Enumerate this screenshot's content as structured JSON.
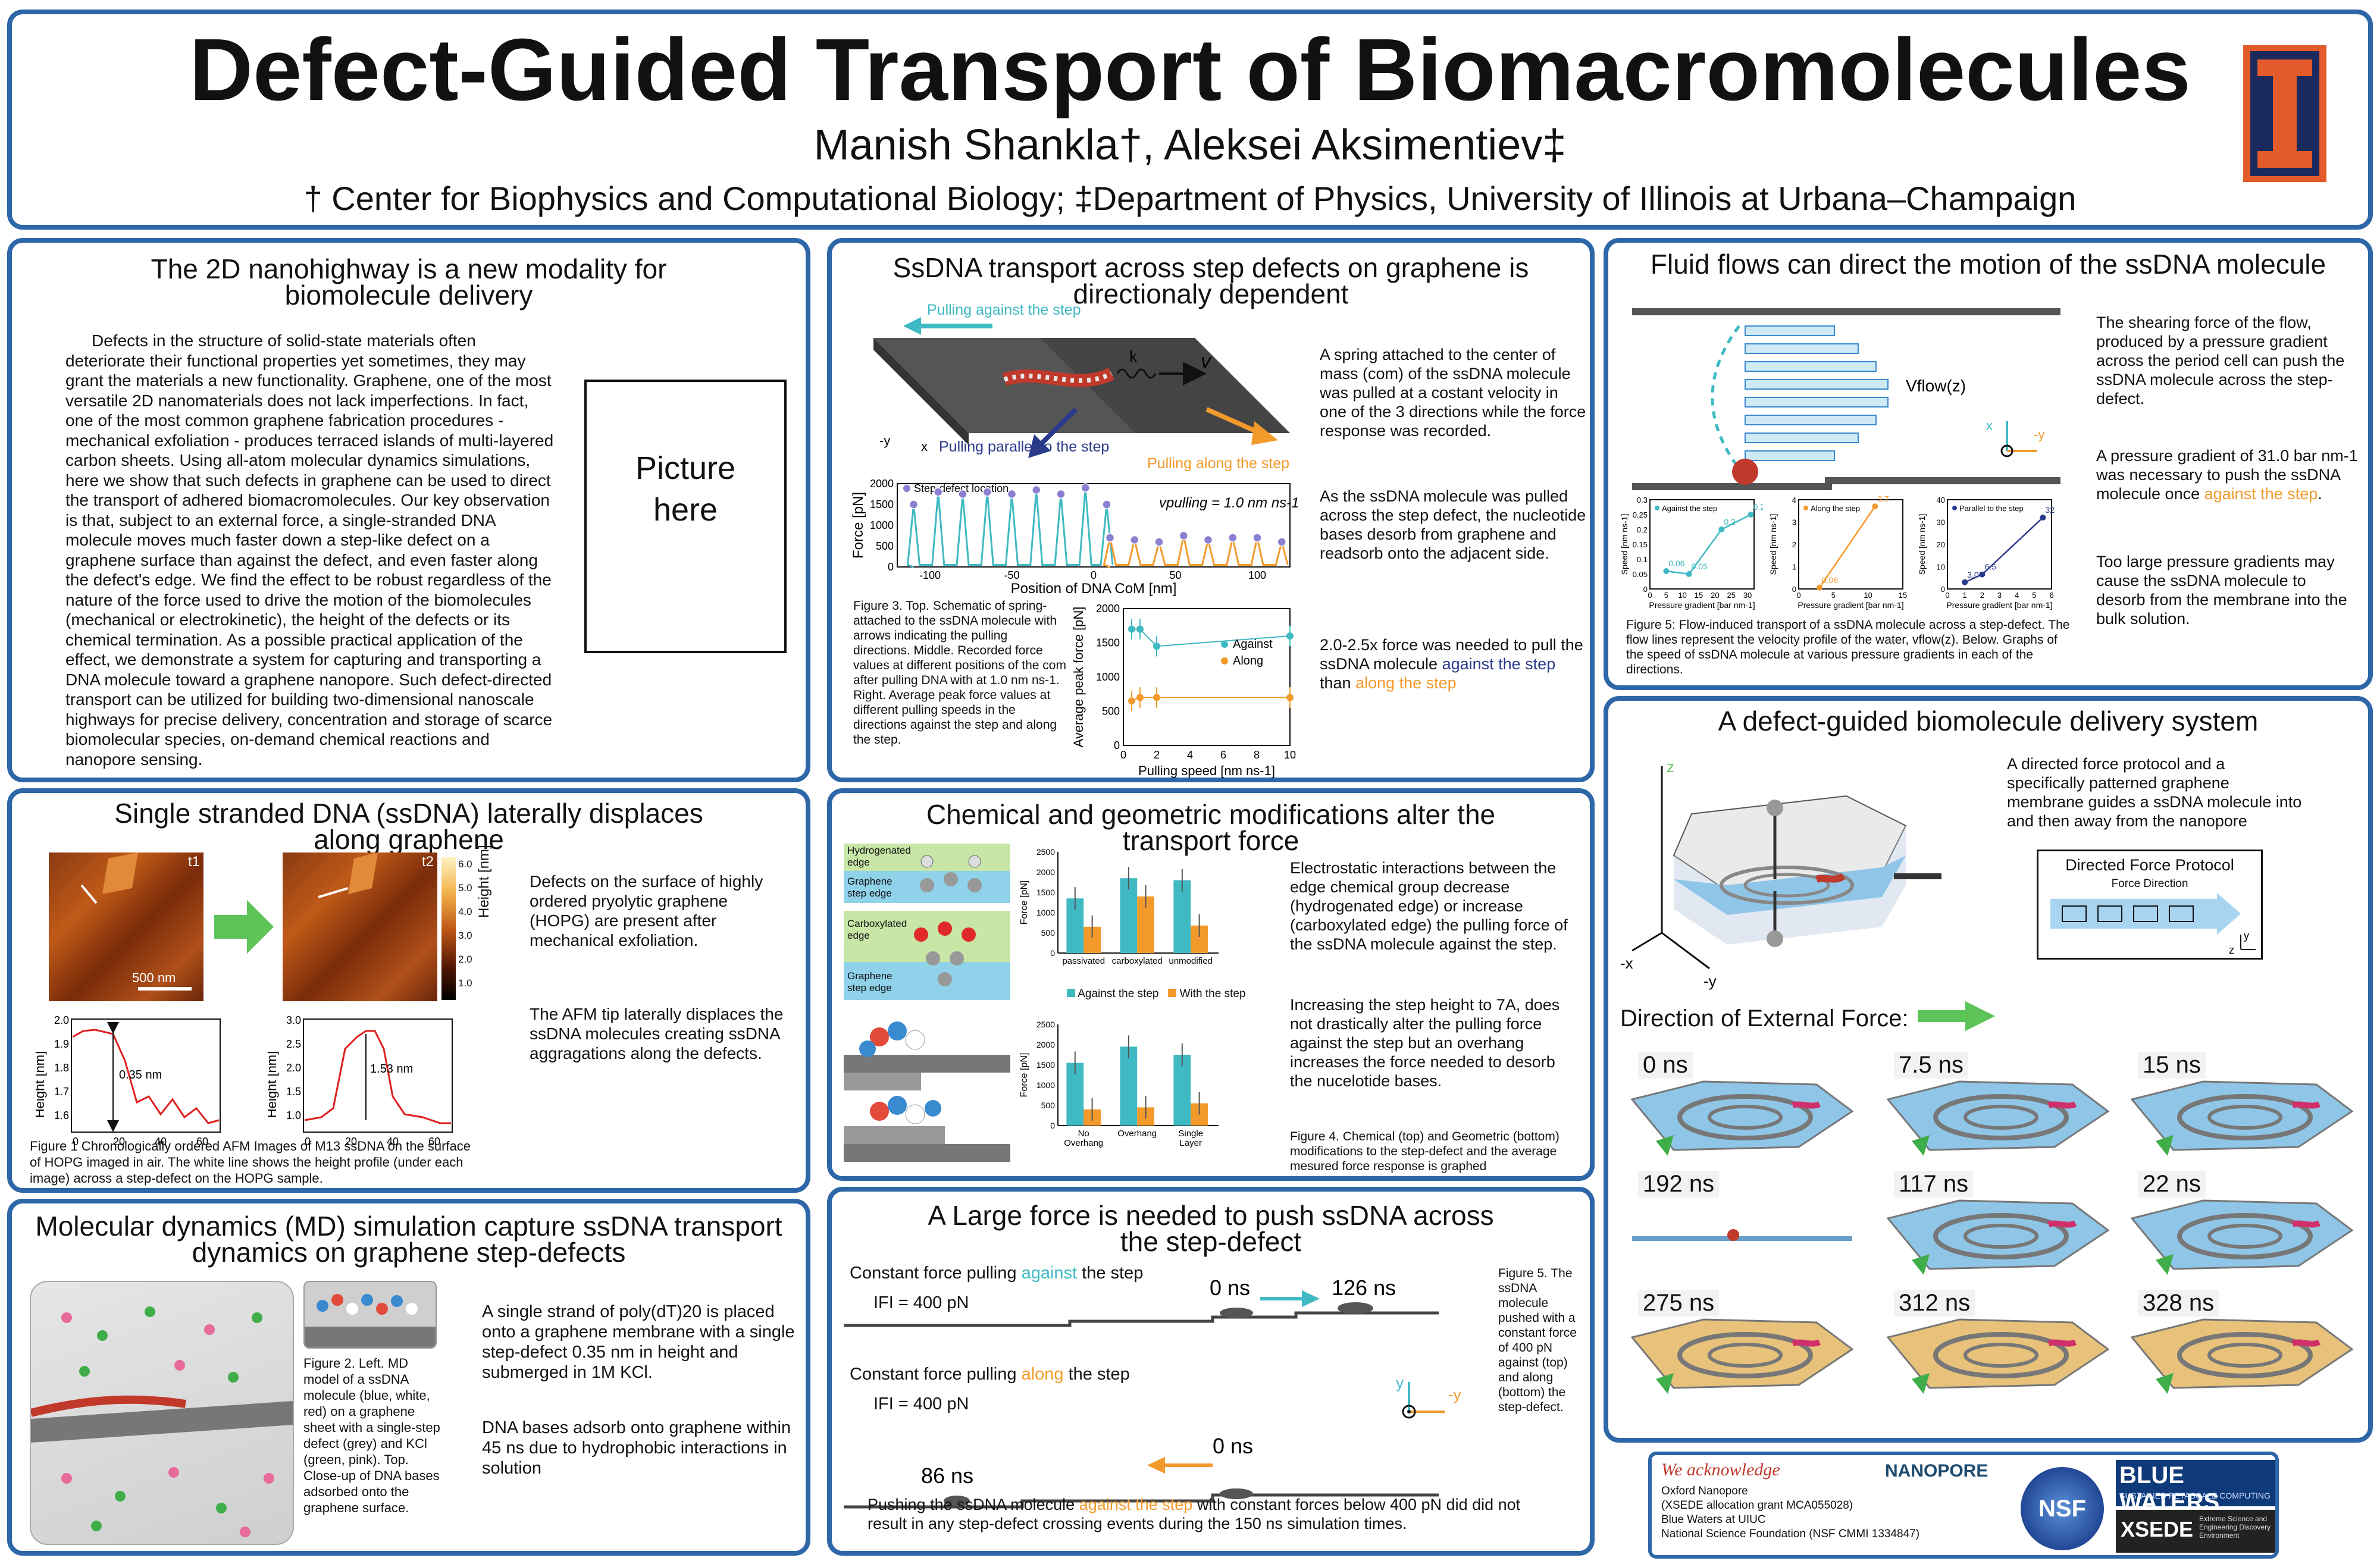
{
  "header": {
    "title": "Defect-Guided Transport of Biomacromolecules",
    "authors": "Manish Shankla†, Aleksei Aksimentiev‡",
    "affiliation": "† Center for Biophysics and Computational Biology; ‡Department of Physics, University of Illinois at Urbana–Champaign"
  },
  "p1": {
    "title": "The 2D nanohighway is a new modality for biomolecule delivery",
    "body": "Defects in the structure of solid-state materials often deteriorate their functional properties yet sometimes, they may grant the materials a new functionality. Graphene, one of the most versatile 2D nanomaterials does not lack imperfections. In fact, one of the most common graphene fabrication procedures - mechanical exfoliation - produces terraced islands of multi-layered carbon sheets. Using all-atom molecular dynamics simulations, here we show that such defects in graphene can be used to direct the transport of adhered biomacromolecules. Our key observation is that, subject to an external force, a single-stranded DNA molecule moves much faster down a step-like defect on a graphene surface than against the defect, and even faster along the defect's edge. We find the effect to be robust regardless of the nature of the force used to drive the motion of the biomolecules (mechanical or electrokinetic), the height of the defects or its chemical termination. As a possible practical application of the effect, we demonstrate a system for capturing and transporting a DNA molecule toward a graphene nanopore. Such defect-directed transport can be utilized for building two-dimensional nanoscale highways for precise delivery, concentration and storage of scarce biomolecular species, on-demand chemical reactions and nanopore sensing.",
    "picture_line1": "Picture",
    "picture_line2": "here"
  },
  "p2": {
    "title": "Single stranded DNA (ssDNA) laterally displaces along graphene",
    "t1": "t1",
    "t2": "t2",
    "scalebar": "500 nm",
    "colorbar_label": "Height [nm]",
    "colorbar_ticks": [
      "6.0",
      "5.0",
      "4.0",
      "3.0",
      "2.0",
      "1.0",
      "0.0"
    ],
    "text1": "Defects on the surface of highly ordered pryolytic graphene (HOPG) are present after mechanical exfoliation.",
    "text2": "The AFM tip laterally displaces the ssDNA molecules creating ssDNA aggragations along the defects.",
    "plot1_ylabel": "Height [nm]",
    "plot1_xlabel": "[nm]",
    "plot1_annot": "0.35 nm",
    "plot1_yticks": [
      "2.0",
      "1.9",
      "1.8",
      "1.7",
      "1.6"
    ],
    "plot1_xticks": [
      "0",
      "20",
      "40",
      "60"
    ],
    "plot2_ylabel": "Height [nm]",
    "plot2_xlabel": "[nm]",
    "plot2_annot": "1.53 nm",
    "plot2_yticks": [
      "3.0",
      "2.5",
      "2.0",
      "1.5",
      "1.0"
    ],
    "plot2_xticks": [
      "0",
      "20",
      "40",
      "60"
    ],
    "caption": "Figure 1 Chronologically ordered AFM Images of M13 ssDNA on the surface of HOPG imaged in air. The white line shows the height profile (under each image) across a step-defect on the HOPG sample."
  },
  "p3": {
    "title": "Molecular dynamics (MD) simulation capture ssDNA transport dynamics on graphene step-defects",
    "caption": "Figure 2. Left. MD model of a ssDNA molecule (blue, white, red) on a graphene sheet with a single-step defect (grey) and KCl (green, pink). Top. Close-up of DNA bases adsorbed onto the graphene surface.",
    "text1": "A single strand of poly(dT)20 is placed onto a graphene membrane with a single step-defect 0.35 nm in height and submerged in 1M KCl.",
    "text2": "DNA bases adsorb onto graphene within 45 ns due to hydrophobic interactions in solution"
  },
  "p4": {
    "title": "SsDNA transport across step defects on graphene is directionaly dependent",
    "label_against": "Pulling against the step",
    "label_parallel": "Pulling parallel to the step",
    "label_along": "Pulling along the step",
    "label_k": "k",
    "label_v": "v",
    "axis_y": "-y",
    "axis_x": "x",
    "text1": "A spring attached to the center of mass (com) of the ssDNA molecule was pulled at a costant velocity in one of the 3 directions while the force response was recorded.",
    "text2": "As the ssDNA molecule was pulled across the step defect, the nucleotide bases desorb from graphene and readsorb onto the adjacent side.",
    "text3_pre": "2.0-2.5x force was needed to pull the ssDNA molecule ",
    "text3_against": "against the step",
    "text3_mid": " than ",
    "text3_along": "along the step",
    "caption": "Figure 3. Top. Schematic of spring-attached to the ssDNA molecule with arrows indicating the pulling directions. Middle. Recorded force values at different positions of the com after pulling DNA with at 1.0 nm ns-1. Right. Average peak force values at different pulling speeds in the directions against the step and along the step."
  },
  "p5": {
    "title": "Chemical and geometric modifications alter the transport force",
    "label_hydro": "Hydrogenated edge",
    "label_graph1": "Graphene step edge",
    "label_carboxy": "Carboxylated edge",
    "label_graph2": "Graphene step edge",
    "legend_against": "Against the step",
    "legend_with": "With the step",
    "text1": "Electrostatic interactions between the edge chemical group decrease (hydrogenated edge) or increase (carboxylated edge) the pulling force of the ssDNA molecule against the step.",
    "text2": "Increasing the step height to 7A, does not drastically alter the pulling force against the step but an overhang increases the force needed to desorb the nucelotide bases.",
    "caption": "Figure 4. Chemical (top) and Geometric (bottom) modifications to the step-defect and the average mesured force response is graphed"
  },
  "p6": {
    "title": "A Large force is needed to push ssDNA across the step-defect",
    "row1_pre": "Constant force pulling ",
    "row1_word": "against",
    "row1_post": " the step",
    "row1_force": "IFI = 400 pN",
    "row1_t0": "0 ns",
    "row1_t1": "126 ns",
    "row2_pre": "Constant force pulling ",
    "row2_word": "along",
    "row2_post": " the step",
    "row2_force": "IFI = 400 pN",
    "row2_t0": "0 ns",
    "row2_t1": "86 ns",
    "axis_y": "y",
    "axis_ny": "-y",
    "caption": "Figure 5. The ssDNA molecule pushed with a constant force of 400 pN against (top) and along (bottom) the step-defect.",
    "bottom_pre": "Pushing the ssDNA molecule ",
    "bottom_hl": "against the step",
    "bottom_post": " with constant forces below 400 pN did did not result in any step-defect crossing events during the 150 ns simulation times."
  },
  "p7": {
    "title": "Fluid flows can direct the motion of the ssDNA molecule",
    "vflow": "Vflow(z)",
    "axis_x": "x",
    "axis_ny": "-y",
    "text1": "The shearing force of the flow, produced by a pressure gradient across the period cell can push the ssDNA molecule across the step-defect.",
    "text2_pre": "A pressure gradient of 31.0 bar nm-1 was necessary to push the ssDNA molecule once ",
    "text2_hl": "against the step",
    "text2_post": ".",
    "text3": "Too large pressure gradients may cause the ssDNA molecule to desorb from the membrane into the bulk solution.",
    "caption": "Figure 5: Flow-induced transport of a ssDNA molecule across a step-defect. The flow lines represent the velocity profile of the water, vflow(z). Below. Graphs of the speed of ssDNA molecule at various pressure gradients in each of the directions."
  },
  "p8": {
    "title": "A defect-guided biomolecule delivery system",
    "text1": "A directed force protocol and a specifically patterned graphene membrane guides a ssDNA molecule into and then away from the nanopore",
    "protocol_title": "Directed Force Protocol",
    "protocol_sub": "Force Direction",
    "axis_z": "z",
    "axis_nx": "-x",
    "axis_ny": "-y",
    "axis_y": "y",
    "direction_label": "Direction of External Force:",
    "times": [
      "0 ns",
      "7.5 ns",
      "15 ns",
      "192 ns",
      "117 ns",
      "22 ns",
      "275 ns",
      "312 ns",
      "328 ns"
    ]
  },
  "ack": {
    "title": "We acknowledge",
    "lines": [
      "Oxford Nanopore",
      "(XSEDE allocation grant MCA055028)",
      "Blue Waters at UIUC",
      "National Science Foundation (NSF CMMI 1334847)"
    ],
    "nanopore": "NANOPORE",
    "nsf": "NSF",
    "bluewaters": "BLUE WATERS",
    "bluewaters_sub": "SUSTAINED PETASCALE COMPUTING",
    "xsede": "XSEDE",
    "xsede_sub": "Extreme Science and Engineering Discovery Environment"
  },
  "chart_data": [
    {
      "type": "line",
      "id": "force-vs-position",
      "xlabel": "Position of DNA CoM [nm]",
      "ylabel": "Force [pN]",
      "legend": "Step-defect location",
      "annotation": "vpulling = 1.0 nm ns-1",
      "xlim": [
        -120,
        120
      ],
      "ylim": [
        0,
        2000
      ],
      "xticks": [
        -100,
        -50,
        0,
        50,
        100
      ],
      "yticks": [
        0,
        500,
        1000,
        1500,
        2000
      ],
      "series": [
        {
          "values": [
            [
              -110,
              1500
            ],
            [
              -95,
              1800
            ],
            [
              -80,
              1750
            ],
            [
              -65,
              1800
            ],
            [
              -50,
              1750
            ],
            [
              -35,
              1850
            ],
            [
              -20,
              1750
            ],
            [
              -5,
              1900
            ],
            [
              8,
              1500
            ]
          ]
        },
        {
          "values": [
            [
              10,
              700
            ],
            [
              25,
              650
            ],
            [
              40,
              600
            ],
            [
              55,
              750
            ],
            [
              70,
              650
            ],
            [
              85,
              700
            ],
            [
              100,
              700
            ],
            [
              115,
              600
            ]
          ]
        }
      ]
    },
    {
      "type": "scatter",
      "id": "peak-force-vs-speed",
      "xlabel": "Pulling speed [nm ns-1]",
      "ylabel": "Average peak force [pN]",
      "xlim": [
        0,
        10
      ],
      "ylim": [
        0,
        2000
      ],
      "xticks": [
        0,
        2,
        4,
        6,
        8,
        10
      ],
      "yticks": [
        0,
        500,
        1000,
        1500,
        2000
      ],
      "series": [
        {
          "name": "Against",
          "values": [
            [
              0.5,
              1700
            ],
            [
              1,
              1700
            ],
            [
              2,
              1450
            ],
            [
              10,
              1600
            ]
          ]
        },
        {
          "name": "Along",
          "values": [
            [
              0.5,
              650
            ],
            [
              1,
              700
            ],
            [
              2,
              700
            ],
            [
              10,
              700
            ]
          ]
        }
      ]
    },
    {
      "type": "bar",
      "id": "chemical-mods",
      "ylabel": "Force [pN]",
      "categories": [
        "passivated",
        "carboxylated",
        "unmodified"
      ],
      "ylim": [
        0,
        2500
      ],
      "yticks": [
        0,
        500,
        1000,
        1500,
        2000,
        2500
      ],
      "series": [
        {
          "name": "Against the step",
          "values": [
            1350,
            1850,
            1800
          ]
        },
        {
          "name": "With the step",
          "values": [
            650,
            1400,
            680
          ]
        }
      ]
    },
    {
      "type": "bar",
      "id": "geometric-mods",
      "ylabel": "Force [pN]",
      "categories": [
        "No Overhang",
        "Overhang",
        "Single Layer"
      ],
      "ylim": [
        0,
        2500
      ],
      "yticks": [
        0,
        500,
        1000,
        1500,
        2000,
        2500
      ],
      "series": [
        {
          "name": "Against the step",
          "values": [
            1550,
            1950,
            1750
          ]
        },
        {
          "name": "With the step",
          "values": [
            400,
            450,
            550
          ]
        }
      ]
    },
    {
      "type": "line",
      "id": "flow-against",
      "xlabel": "Pressure gradient [bar nm-1]",
      "ylabel": "Speed [nm ns-1]",
      "legend": "Against the step",
      "xticks": [
        0,
        5,
        10,
        15,
        20,
        25,
        30
      ],
      "yticks": [
        0,
        0.05,
        0.1,
        0.15,
        0.2,
        0.25,
        0.3
      ],
      "xlim": [
        0,
        32
      ],
      "ylim": [
        0,
        0.3
      ],
      "series": [
        {
          "name": "Against the step",
          "values": [
            [
              5,
              0.06
            ],
            [
              12,
              0.05
            ],
            [
              22,
              0.2
            ],
            [
              31,
              0.25
            ]
          ]
        }
      ],
      "labels": [
        "0.06",
        "0.05",
        "0.2",
        "0.25"
      ]
    },
    {
      "type": "line",
      "id": "flow-along",
      "xlabel": "Pressure gradient [bar nm-1]",
      "ylabel": "Speed [nm ns-1]",
      "legend": "Along the step",
      "xticks": [
        0,
        5,
        10,
        15
      ],
      "yticks": [
        0,
        1,
        2,
        3,
        4
      ],
      "xlim": [
        0,
        15
      ],
      "ylim": [
        0,
        4
      ],
      "series": [
        {
          "name": "Along the step",
          "values": [
            [
              3,
              0.06
            ],
            [
              11,
              3.7
            ]
          ]
        }
      ],
      "labels": [
        "0.06",
        "3.7"
      ]
    },
    {
      "type": "line",
      "id": "flow-parallel",
      "xlabel": "Pressure gradient [bar nm-1]",
      "ylabel": "Speed [nm ns-1]",
      "legend": "Parallel to the step",
      "xticks": [
        0,
        1,
        2,
        3,
        4,
        5,
        6
      ],
      "yticks": [
        0,
        10,
        20,
        30,
        40
      ],
      "xlim": [
        0,
        6
      ],
      "ylim": [
        0,
        40
      ],
      "series": [
        {
          "name": "Parallel to the step",
          "values": [
            [
              1,
              3.0
            ],
            [
              2,
              6.5
            ],
            [
              5.5,
              32
            ]
          ]
        }
      ],
      "labels": [
        "3.0",
        "6.5",
        "32"
      ]
    }
  ]
}
